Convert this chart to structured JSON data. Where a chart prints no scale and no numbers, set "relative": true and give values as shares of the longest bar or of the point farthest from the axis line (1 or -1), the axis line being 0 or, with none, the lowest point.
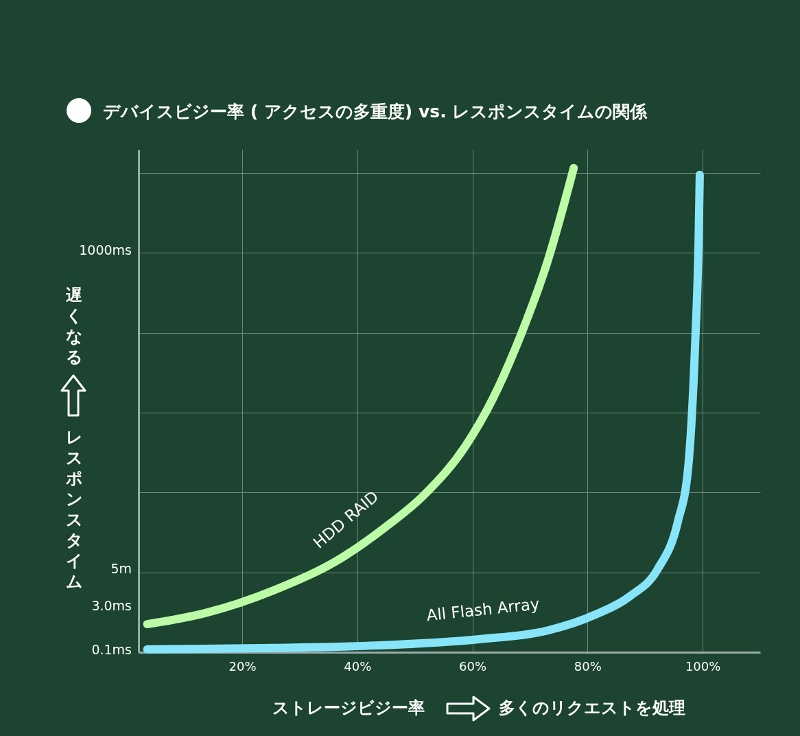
{
  "chart_data": {
    "type": "line",
    "title": "デバイスビジー率 ( アクセスの多重度) vs. レスポンスタイムの関係",
    "xlabel": "ストレージビジー率",
    "ylabel": "レスポンスタイム",
    "relative": true,
    "xlim": [
      2,
      110
    ],
    "xticks": [
      {
        "value": 20,
        "label": "20%"
      },
      {
        "value": 40,
        "label": "40%"
      },
      {
        "value": 60,
        "label": "60%"
      },
      {
        "value": 80,
        "label": "80%"
      },
      {
        "value": 100,
        "label": "100%"
      }
    ],
    "grid": true,
    "legend": false,
    "line_style": "solid",
    "annotations": [
      "1000ms",
      "5m",
      "3.0ms",
      "0.1ms",
      "遅くなる",
      "多くのリクエストを処理"
    ],
    "series": [
      {
        "name": "HDD RAID",
        "color": "#bdfca6",
        "x": [
          3.5,
          13.6,
          25.5,
          37.4,
          44.5,
          51.7,
          58.8,
          63.6,
          68.3,
          73.1,
          77.6
        ],
        "values": [
          0.058,
          0.081,
          0.128,
          0.196,
          0.255,
          0.326,
          0.426,
          0.525,
          0.652,
          0.809,
          1.0
        ]
      },
      {
        "name": "All Flash Array",
        "color": "#88e4f8",
        "x": [
          3.5,
          25.5,
          43.3,
          61.2,
          73.1,
          81.4,
          87.4,
          92.1,
          95.7,
          97.5,
          98.7,
          99.3,
          99.5
        ],
        "values": [
          0.006,
          0.009,
          0.014,
          0.027,
          0.045,
          0.078,
          0.116,
          0.17,
          0.27,
          0.383,
          0.638,
          0.851,
          0.986
        ]
      }
    ]
  }
}
